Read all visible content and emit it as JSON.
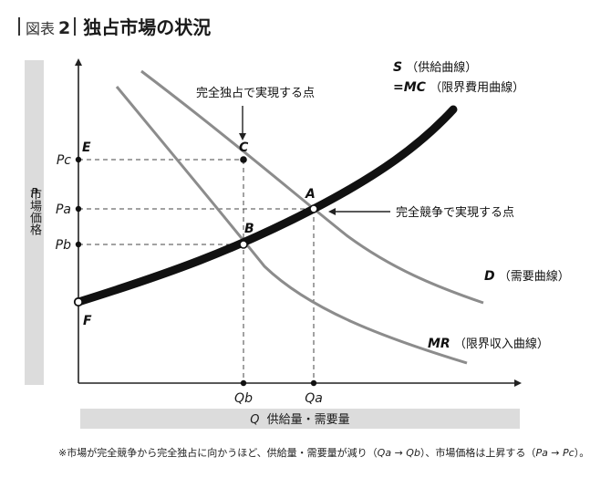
{
  "header": {
    "figure_label": "図表",
    "figure_number": "2",
    "title": "独占市場の状況"
  },
  "axes": {
    "y_label_symbol": "P",
    "y_label_text": "市場価格",
    "x_label_symbol": "Q",
    "x_label_text": "供給量・需要量"
  },
  "price_ticks": {
    "pc": "Pc",
    "pa": "Pa",
    "pb": "Pb"
  },
  "quantity_ticks": {
    "qb": "Qb",
    "qa": "Qa"
  },
  "points": {
    "e": "E",
    "c": "C",
    "a": "A",
    "b": "B",
    "f": "F"
  },
  "curves": {
    "supply_symbol": "S",
    "supply_text": "（供給曲線）",
    "mc_symbol": "=MC",
    "mc_text": "（限界費用曲線）",
    "demand_symbol": "D",
    "demand_text": "（需要曲線）",
    "mr_symbol": "MR",
    "mr_text": "（限界収入曲線）"
  },
  "annotations": {
    "monopoly_point": "完全独占で実現する点",
    "competition_point": "完全競争で実現する点"
  },
  "footnote": {
    "part1": "※市場が完全競争から完全独占に向かうほど、供給量・需要量が減り（",
    "qa": "Qa",
    "arrow1": " → ",
    "qb": "Qb",
    "part2": "）、市場価格は上昇する（",
    "pa": "Pa",
    "arrow2": " → ",
    "pc": "Pc",
    "part3": "）。"
  },
  "colors": {
    "axis": "#222222",
    "supply_curve": "#1a1a1a",
    "demand_curve": "#8c8c8c",
    "label_band": "#dcdcdc"
  }
}
